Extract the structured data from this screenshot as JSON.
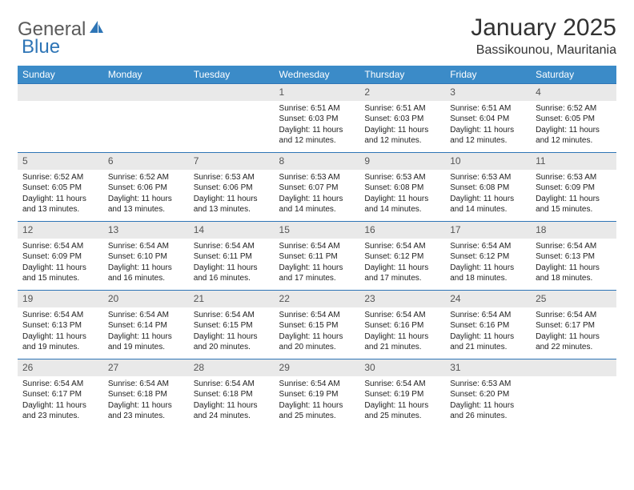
{
  "logo": {
    "text1": "General",
    "text2": "Blue"
  },
  "title": "January 2025",
  "location": "Bassikounou, Mauritania",
  "colors": {
    "header_bg": "#3b8bc8",
    "header_text": "#ffffff",
    "daynum_bg": "#e9e9e9",
    "row_border": "#2e75b6",
    "logo_gray": "#5a5a5a",
    "logo_blue": "#2e75b6"
  },
  "weekdays": [
    "Sunday",
    "Monday",
    "Tuesday",
    "Wednesday",
    "Thursday",
    "Friday",
    "Saturday"
  ],
  "weeks": [
    [
      {
        "n": "",
        "t": ""
      },
      {
        "n": "",
        "t": ""
      },
      {
        "n": "",
        "t": ""
      },
      {
        "n": "1",
        "t": "Sunrise: 6:51 AM\nSunset: 6:03 PM\nDaylight: 11 hours and 12 minutes."
      },
      {
        "n": "2",
        "t": "Sunrise: 6:51 AM\nSunset: 6:03 PM\nDaylight: 11 hours and 12 minutes."
      },
      {
        "n": "3",
        "t": "Sunrise: 6:51 AM\nSunset: 6:04 PM\nDaylight: 11 hours and 12 minutes."
      },
      {
        "n": "4",
        "t": "Sunrise: 6:52 AM\nSunset: 6:05 PM\nDaylight: 11 hours and 12 minutes."
      }
    ],
    [
      {
        "n": "5",
        "t": "Sunrise: 6:52 AM\nSunset: 6:05 PM\nDaylight: 11 hours and 13 minutes."
      },
      {
        "n": "6",
        "t": "Sunrise: 6:52 AM\nSunset: 6:06 PM\nDaylight: 11 hours and 13 minutes."
      },
      {
        "n": "7",
        "t": "Sunrise: 6:53 AM\nSunset: 6:06 PM\nDaylight: 11 hours and 13 minutes."
      },
      {
        "n": "8",
        "t": "Sunrise: 6:53 AM\nSunset: 6:07 PM\nDaylight: 11 hours and 14 minutes."
      },
      {
        "n": "9",
        "t": "Sunrise: 6:53 AM\nSunset: 6:08 PM\nDaylight: 11 hours and 14 minutes."
      },
      {
        "n": "10",
        "t": "Sunrise: 6:53 AM\nSunset: 6:08 PM\nDaylight: 11 hours and 14 minutes."
      },
      {
        "n": "11",
        "t": "Sunrise: 6:53 AM\nSunset: 6:09 PM\nDaylight: 11 hours and 15 minutes."
      }
    ],
    [
      {
        "n": "12",
        "t": "Sunrise: 6:54 AM\nSunset: 6:09 PM\nDaylight: 11 hours and 15 minutes."
      },
      {
        "n": "13",
        "t": "Sunrise: 6:54 AM\nSunset: 6:10 PM\nDaylight: 11 hours and 16 minutes."
      },
      {
        "n": "14",
        "t": "Sunrise: 6:54 AM\nSunset: 6:11 PM\nDaylight: 11 hours and 16 minutes."
      },
      {
        "n": "15",
        "t": "Sunrise: 6:54 AM\nSunset: 6:11 PM\nDaylight: 11 hours and 17 minutes."
      },
      {
        "n": "16",
        "t": "Sunrise: 6:54 AM\nSunset: 6:12 PM\nDaylight: 11 hours and 17 minutes."
      },
      {
        "n": "17",
        "t": "Sunrise: 6:54 AM\nSunset: 6:12 PM\nDaylight: 11 hours and 18 minutes."
      },
      {
        "n": "18",
        "t": "Sunrise: 6:54 AM\nSunset: 6:13 PM\nDaylight: 11 hours and 18 minutes."
      }
    ],
    [
      {
        "n": "19",
        "t": "Sunrise: 6:54 AM\nSunset: 6:13 PM\nDaylight: 11 hours and 19 minutes."
      },
      {
        "n": "20",
        "t": "Sunrise: 6:54 AM\nSunset: 6:14 PM\nDaylight: 11 hours and 19 minutes."
      },
      {
        "n": "21",
        "t": "Sunrise: 6:54 AM\nSunset: 6:15 PM\nDaylight: 11 hours and 20 minutes."
      },
      {
        "n": "22",
        "t": "Sunrise: 6:54 AM\nSunset: 6:15 PM\nDaylight: 11 hours and 20 minutes."
      },
      {
        "n": "23",
        "t": "Sunrise: 6:54 AM\nSunset: 6:16 PM\nDaylight: 11 hours and 21 minutes."
      },
      {
        "n": "24",
        "t": "Sunrise: 6:54 AM\nSunset: 6:16 PM\nDaylight: 11 hours and 21 minutes."
      },
      {
        "n": "25",
        "t": "Sunrise: 6:54 AM\nSunset: 6:17 PM\nDaylight: 11 hours and 22 minutes."
      }
    ],
    [
      {
        "n": "26",
        "t": "Sunrise: 6:54 AM\nSunset: 6:17 PM\nDaylight: 11 hours and 23 minutes."
      },
      {
        "n": "27",
        "t": "Sunrise: 6:54 AM\nSunset: 6:18 PM\nDaylight: 11 hours and 23 minutes."
      },
      {
        "n": "28",
        "t": "Sunrise: 6:54 AM\nSunset: 6:18 PM\nDaylight: 11 hours and 24 minutes."
      },
      {
        "n": "29",
        "t": "Sunrise: 6:54 AM\nSunset: 6:19 PM\nDaylight: 11 hours and 25 minutes."
      },
      {
        "n": "30",
        "t": "Sunrise: 6:54 AM\nSunset: 6:19 PM\nDaylight: 11 hours and 25 minutes."
      },
      {
        "n": "31",
        "t": "Sunrise: 6:53 AM\nSunset: 6:20 PM\nDaylight: 11 hours and 26 minutes."
      },
      {
        "n": "",
        "t": ""
      }
    ]
  ]
}
